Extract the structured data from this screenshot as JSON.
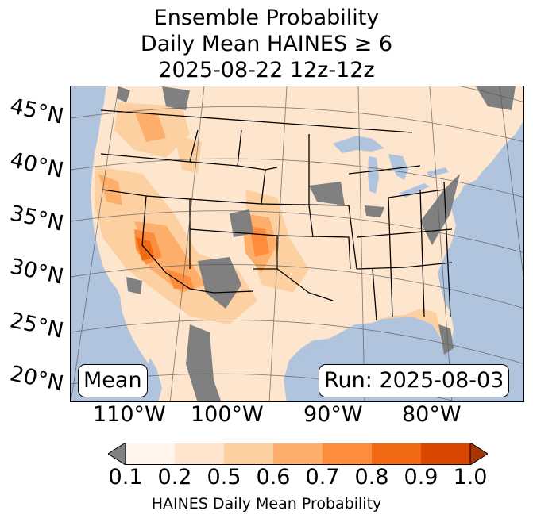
{
  "title": {
    "line1": "Ensemble Probability",
    "line2": "Daily Mean HAINES ≥ 6",
    "line3": "2025-08-22 12z-12z"
  },
  "map": {
    "lat_labels": [
      "45°N",
      "40°N",
      "35°N",
      "30°N",
      "25°N",
      "20°N"
    ],
    "lon_labels": [
      "110°W",
      "100°W",
      "90°W",
      "80°W"
    ],
    "mean_label": "Mean",
    "run_label": "Run: 2025-08-03",
    "colors": {
      "ocean": "#b0c4de",
      "missing": "#808080",
      "border": "#000000",
      "grid": "#555555"
    }
  },
  "colorbar": {
    "ticks": [
      "0.1",
      "0.2",
      "0.5",
      "0.6",
      "0.7",
      "0.8",
      "0.9",
      "1.0"
    ],
    "colors": [
      "#fff5eb",
      "#fee6ce",
      "#fdd0a2",
      "#fdae6b",
      "#fd8d3c",
      "#f16913",
      "#d94801",
      "#a63603"
    ],
    "under_color": "#808080",
    "label": "HAINES Daily Mean Probability"
  }
}
